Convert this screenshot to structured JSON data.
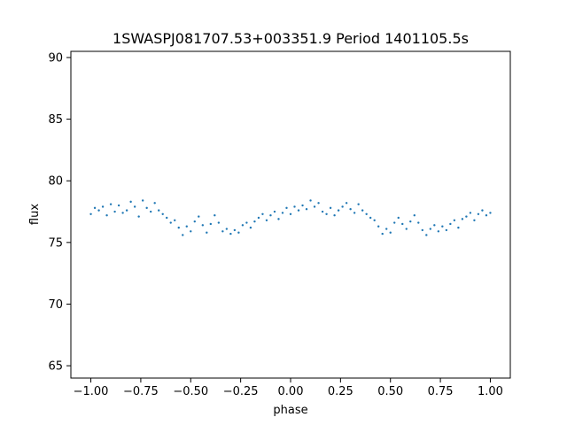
{
  "chart_data": {
    "type": "scatter",
    "title": "1SWASPJ081707.53+003351.9 Period 1401105.5s",
    "xlabel": "phase",
    "ylabel": "flux",
    "xlim": [
      -1.1,
      1.1
    ],
    "ylim": [
      64.0,
      90.5
    ],
    "x_ticks": [
      -1.0,
      -0.75,
      -0.5,
      -0.25,
      0.0,
      0.25,
      0.5,
      0.75,
      1.0
    ],
    "x_tick_labels": [
      "−1.00",
      "−0.75",
      "−0.50",
      "−0.25",
      "0.00",
      "0.25",
      "0.50",
      "0.75",
      "1.00"
    ],
    "y_ticks": [
      65,
      70,
      75,
      80,
      85,
      90
    ],
    "y_tick_labels": [
      "65",
      "70",
      "75",
      "80",
      "85",
      "90"
    ],
    "grid": false,
    "marker_color": "#1f77b4",
    "series": [
      {
        "x": [
          -1.0,
          -0.98,
          -0.96,
          -0.94,
          -0.92,
          -0.9,
          -0.88,
          -0.86,
          -0.84,
          -0.82,
          -0.8,
          -0.78,
          -0.76,
          -0.74,
          -0.72,
          -0.7,
          -0.68,
          -0.66,
          -0.64,
          -0.62,
          -0.6,
          -0.58,
          -0.56,
          -0.54,
          -0.52,
          -0.5,
          -0.48,
          -0.46,
          -0.44,
          -0.42,
          -0.4,
          -0.38,
          -0.36,
          -0.34,
          -0.32,
          -0.3,
          -0.28,
          -0.26,
          -0.24,
          -0.22,
          -0.2,
          -0.18,
          -0.16,
          -0.14,
          -0.12,
          -0.1,
          -0.08,
          -0.06,
          -0.04,
          -0.02,
          0.0,
          0.02,
          0.04,
          0.06,
          0.08,
          0.1,
          0.12,
          0.14,
          0.16,
          0.18,
          0.2,
          0.22,
          0.24,
          0.26,
          0.28,
          0.3,
          0.32,
          0.34,
          0.36,
          0.38,
          0.4,
          0.42,
          0.44,
          0.46,
          0.48,
          0.5,
          0.52,
          0.54,
          0.56,
          0.58,
          0.6,
          0.62,
          0.64,
          0.66,
          0.68,
          0.7,
          0.72,
          0.74,
          0.76,
          0.78,
          0.8,
          0.82,
          0.84,
          0.86,
          0.88,
          0.9,
          0.92,
          0.94,
          0.96,
          0.98,
          1.0
        ],
        "y": [
          77.3,
          77.8,
          77.6,
          77.9,
          77.2,
          78.1,
          77.5,
          78.0,
          77.4,
          77.6,
          78.3,
          77.9,
          77.1,
          78.4,
          77.8,
          77.5,
          78.2,
          77.6,
          77.3,
          77.0,
          76.6,
          76.8,
          76.2,
          75.6,
          76.3,
          75.9,
          76.7,
          77.1,
          76.4,
          75.8,
          76.5,
          77.2,
          76.6,
          75.9,
          76.1,
          75.7,
          76.0,
          75.8,
          76.4,
          76.6,
          76.2,
          76.7,
          77.0,
          77.3,
          76.8,
          77.2,
          77.5,
          76.9,
          77.4,
          77.8,
          77.3,
          77.9,
          77.6,
          78.0,
          77.7,
          78.4,
          77.9,
          78.2,
          77.5,
          77.3,
          77.8,
          77.2,
          77.6,
          77.9,
          78.2,
          77.7,
          77.4,
          78.1,
          77.6,
          77.3,
          77.0,
          76.8,
          76.3,
          75.7,
          76.1,
          75.8,
          76.6,
          77.0,
          76.5,
          76.1,
          76.7,
          77.2,
          76.6,
          76.0,
          75.6,
          76.1,
          76.4,
          75.9,
          76.3,
          76.0,
          76.5,
          76.8,
          76.2,
          76.9,
          77.1,
          77.4,
          76.8,
          77.3,
          77.6,
          77.2,
          77.4
        ]
      }
    ]
  }
}
